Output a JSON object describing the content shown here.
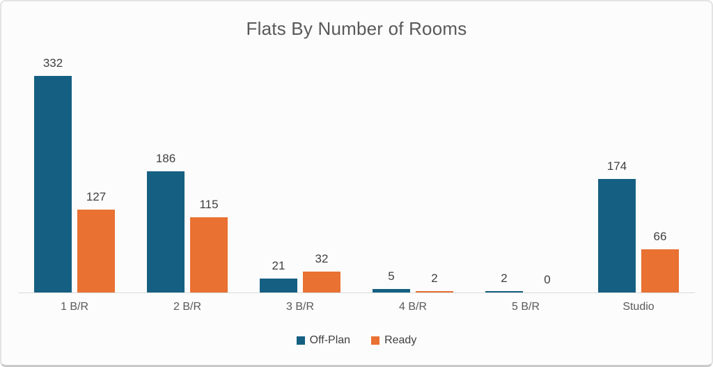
{
  "chart_data": {
    "type": "bar",
    "title": "Flats By Number of Rooms",
    "categories": [
      "1 B/R",
      "2 B/R",
      "3 B/R",
      "4 B/R",
      "5 B/R",
      "Studio"
    ],
    "series": [
      {
        "name": "Off-Plan",
        "color": "#156082",
        "values": [
          332,
          186,
          21,
          5,
          2,
          174
        ]
      },
      {
        "name": "Ready",
        "color": "#E97132",
        "values": [
          127,
          115,
          32,
          2,
          0,
          66
        ]
      }
    ],
    "xlabel": "",
    "ylabel": "",
    "ylim": [
      0,
      350
    ],
    "grid": false,
    "data_labels": true,
    "legend_position": "bottom"
  },
  "colors": {
    "title_text": "#595959",
    "value_label_text": "#3f3f3f",
    "category_text": "#595959",
    "axis_line": "#d9d9d9",
    "card_border": "#e3e3e3",
    "card_background": "#fcfcfc"
  }
}
